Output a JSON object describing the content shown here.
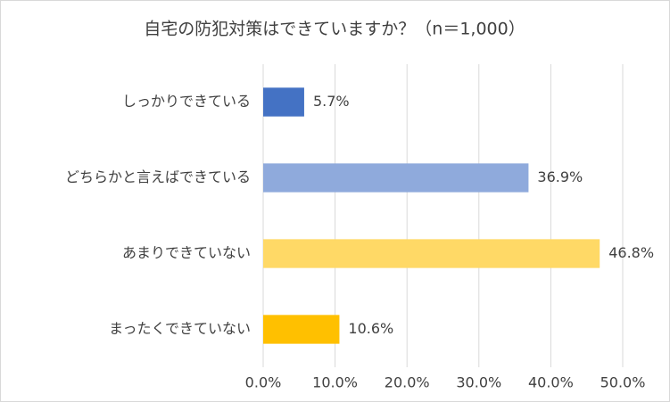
{
  "chart_data": {
    "type": "bar",
    "orientation": "horizontal",
    "title": "自宅の防犯対策はできていますか？（n＝1,000）",
    "categories": [
      "しっかりできている",
      "どちらかと言えばできている",
      "あまりできていない",
      "まったくできていない"
    ],
    "values": [
      5.7,
      36.9,
      46.8,
      10.6
    ],
    "value_labels": [
      "5.7%",
      "36.9%",
      "46.8%",
      "10.6%"
    ],
    "colors": [
      "#4472c4",
      "#8faadc",
      "#ffd966",
      "#ffc000"
    ],
    "xlim": [
      0,
      50
    ],
    "xticks": [
      {
        "value": 0,
        "label": "0.0%"
      },
      {
        "value": 10,
        "label": "10.0%"
      },
      {
        "value": 20,
        "label": "20.0%"
      },
      {
        "value": 30,
        "label": "30.0%"
      },
      {
        "value": 40,
        "label": "40.0%"
      },
      {
        "value": 50,
        "label": "50.0%"
      }
    ],
    "grid": true
  }
}
